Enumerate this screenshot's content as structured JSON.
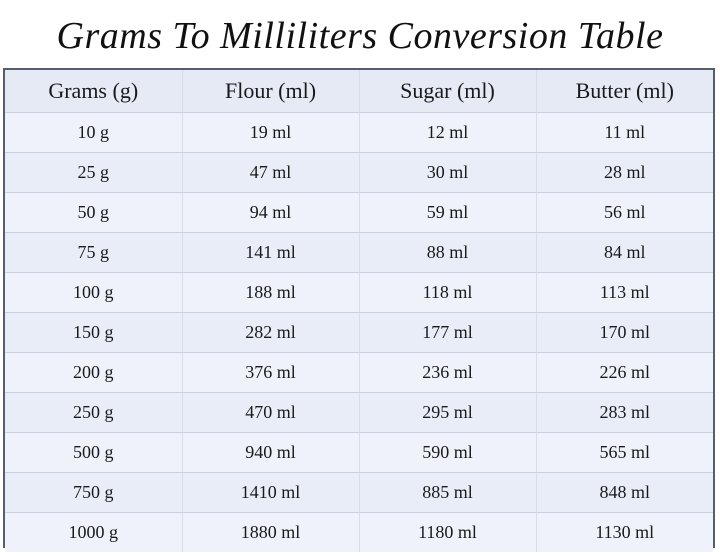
{
  "title": "Grams To Milliliters Conversion Table",
  "table": {
    "headers": [
      "Grams (g)",
      "Flour (ml)",
      "Sugar (ml)",
      "Butter (ml)"
    ],
    "rows": [
      [
        "10 g",
        "19 ml",
        "12 ml",
        "11 ml"
      ],
      [
        "25 g",
        "47 ml",
        "30 ml",
        "28 ml"
      ],
      [
        "50 g",
        "94 ml",
        "59 ml",
        "56 ml"
      ],
      [
        "75 g",
        "141 ml",
        "88 ml",
        "84 ml"
      ],
      [
        "100 g",
        "188 ml",
        "118 ml",
        "113 ml"
      ],
      [
        "150 g",
        "282 ml",
        "177 ml",
        "170 ml"
      ],
      [
        "200 g",
        "376 ml",
        "236 ml",
        "226 ml"
      ],
      [
        "250 g",
        "470 ml",
        "295 ml",
        "283 ml"
      ],
      [
        "500 g",
        "940 ml",
        "590 ml",
        "565 ml"
      ],
      [
        "750 g",
        "1410 ml",
        "885 ml",
        "848 ml"
      ],
      [
        "1000 g",
        "1880 ml",
        "1180 ml",
        "1130 ml"
      ]
    ]
  }
}
